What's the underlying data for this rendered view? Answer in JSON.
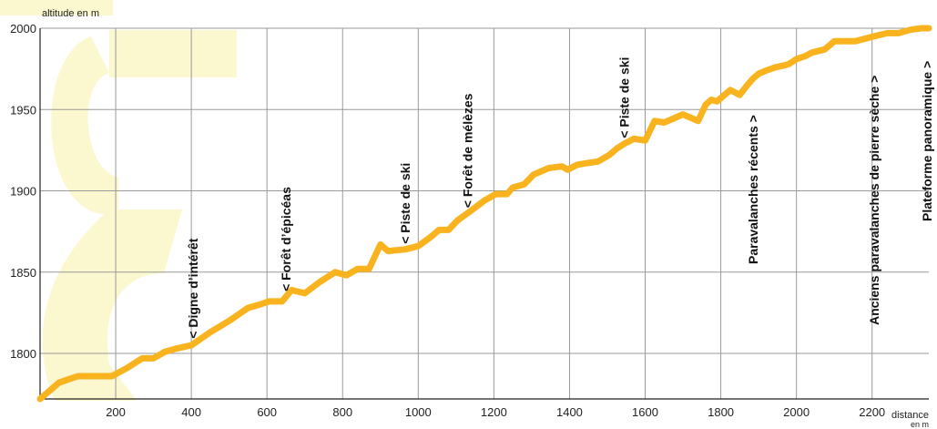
{
  "colors": {
    "line": "#f8b31f",
    "watermark": "#fbf7cf",
    "grid": "#9a9a9a",
    "axis": "#222222"
  },
  "chart_data": {
    "type": "line",
    "title": "",
    "xlabel": "distance en m",
    "xlabel_lines": [
      "distance",
      "en m"
    ],
    "ylabel": "altitude en m",
    "xlim": [
      0,
      2350
    ],
    "ylim": [
      1772,
      2000
    ],
    "x_ticks": [
      200,
      400,
      600,
      800,
      1000,
      1200,
      1400,
      1600,
      1800,
      2000,
      2200
    ],
    "y_ticks": [
      1800,
      1850,
      1900,
      1950,
      2000
    ],
    "grid": true,
    "legend": "none",
    "series": [
      {
        "x": [
          0,
          50,
          100,
          150,
          190,
          230,
          270,
          300,
          330,
          360,
          400,
          450,
          500,
          550,
          580,
          605,
          640,
          665,
          700,
          740,
          780,
          810,
          840,
          870,
          900,
          920,
          965,
          1000,
          1035,
          1055,
          1080,
          1105,
          1135,
          1175,
          1205,
          1235,
          1250,
          1280,
          1305,
          1345,
          1380,
          1395,
          1420,
          1445,
          1475,
          1505,
          1525,
          1545,
          1570,
          1600,
          1625,
          1650,
          1670,
          1700,
          1740,
          1760,
          1775,
          1790,
          1810,
          1825,
          1850,
          1870,
          1885,
          1900,
          1920,
          1945,
          1965,
          1980,
          2000,
          2025,
          2040,
          2075,
          2100,
          2125,
          2155,
          2205,
          2240,
          2270,
          2300,
          2330,
          2350
        ],
        "y": [
          1772,
          1782,
          1786,
          1786,
          1786,
          1791,
          1797,
          1797,
          1801,
          1803,
          1805,
          1813,
          1820,
          1828,
          1830,
          1832,
          1832,
          1839,
          1837,
          1844,
          1850,
          1848,
          1852,
          1852,
          1867,
          1863,
          1864,
          1866,
          1872,
          1876,
          1876,
          1882,
          1887,
          1894,
          1898,
          1898,
          1902,
          1904,
          1910,
          1914,
          1915,
          1913,
          1916,
          1917,
          1918,
          1922,
          1926,
          1929,
          1932,
          1931,
          1943,
          1942,
          1944,
          1947,
          1943,
          1953,
          1956,
          1955,
          1959,
          1962,
          1959,
          1965,
          1969,
          1972,
          1974,
          1976,
          1977,
          1978,
          1981,
          1983,
          1985,
          1987,
          1992,
          1992,
          1992,
          1995,
          1997,
          1997,
          1999,
          2000,
          2000
        ]
      }
    ],
    "annotations": [
      {
        "text": "< Digne d’intérêt",
        "x": 405
      },
      {
        "text": "< Forêt d’épicéas",
        "x": 650
      },
      {
        "text": "< Piste de ski",
        "x": 965
      },
      {
        "text": "< Forêt de mélèzes",
        "x": 1130
      },
      {
        "text": "< Piste de ski",
        "x": 1545
      },
      {
        "text": "Paravalanches récents >",
        "x": 1885
      },
      {
        "text": "Anciens paravalanches de pierre sèche >",
        "x": 2205
      },
      {
        "text": "Plateforme panoramique >",
        "x": 2345
      }
    ]
  }
}
